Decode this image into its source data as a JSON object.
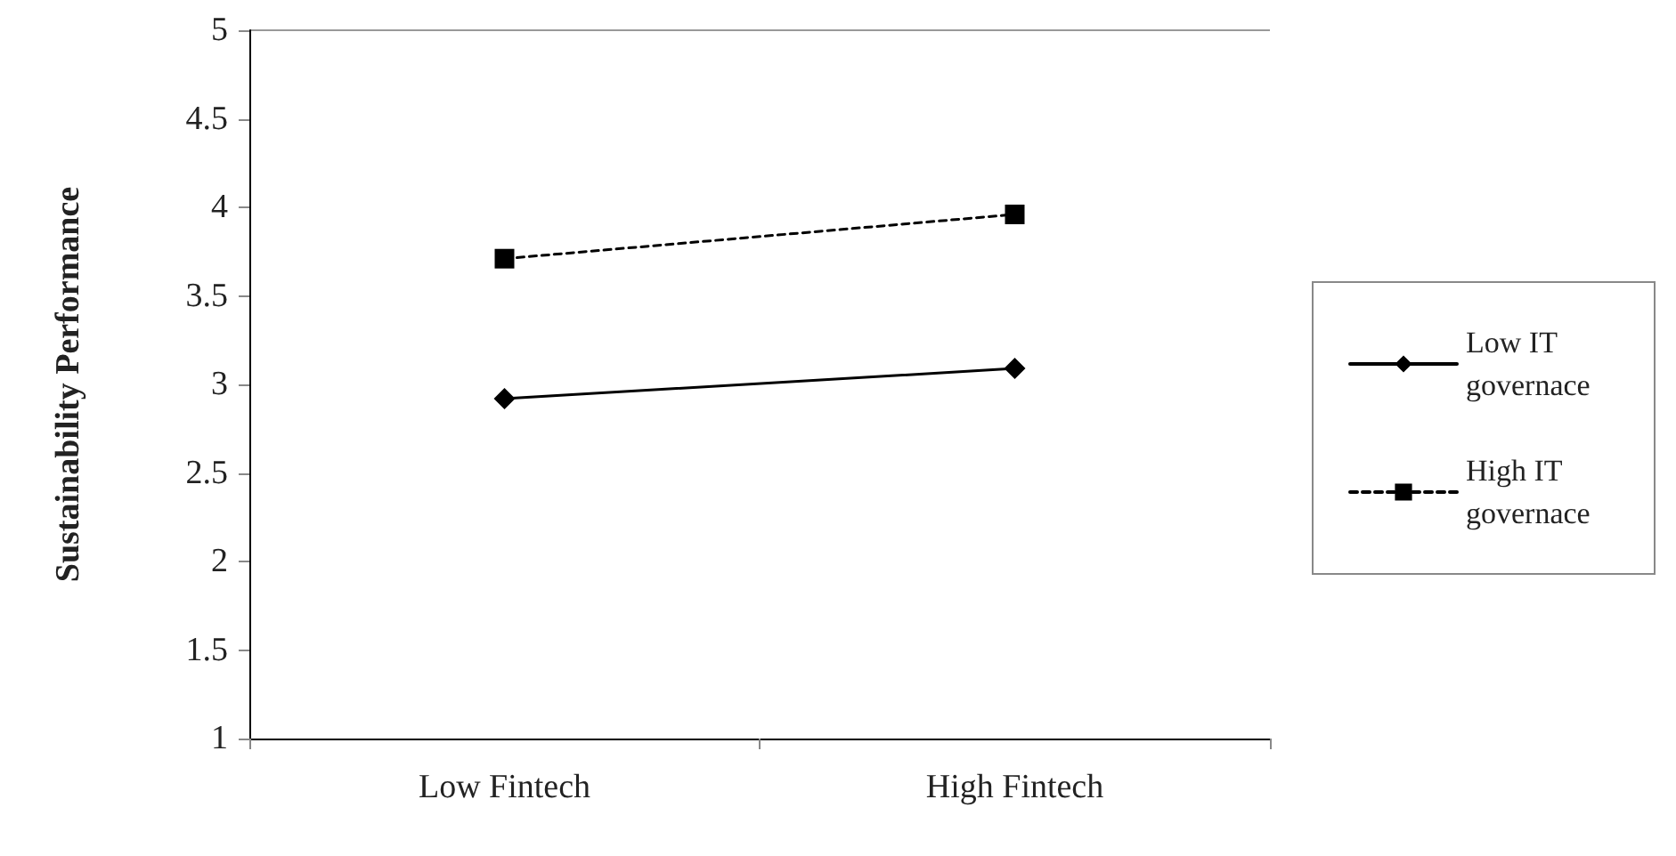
{
  "chart_data": {
    "type": "line",
    "ylabel": "Sustainability Performance",
    "categories": [
      "Low Fintech",
      "High Fintech"
    ],
    "series": [
      {
        "name": "Low IT governace",
        "color": "#000000",
        "values": [
          2.92,
          3.09
        ],
        "marker": "diamond",
        "line_style": "solid"
      },
      {
        "name": "High IT governace",
        "color": "#000000",
        "values": [
          3.71,
          3.96
        ],
        "marker": "square",
        "line_style": "dashed"
      }
    ],
    "ylim": [
      1,
      5
    ],
    "yticks": [
      1,
      1.5,
      2,
      2.5,
      3,
      3.5,
      4,
      4.5,
      5
    ],
    "grid": false,
    "legend": "right"
  }
}
